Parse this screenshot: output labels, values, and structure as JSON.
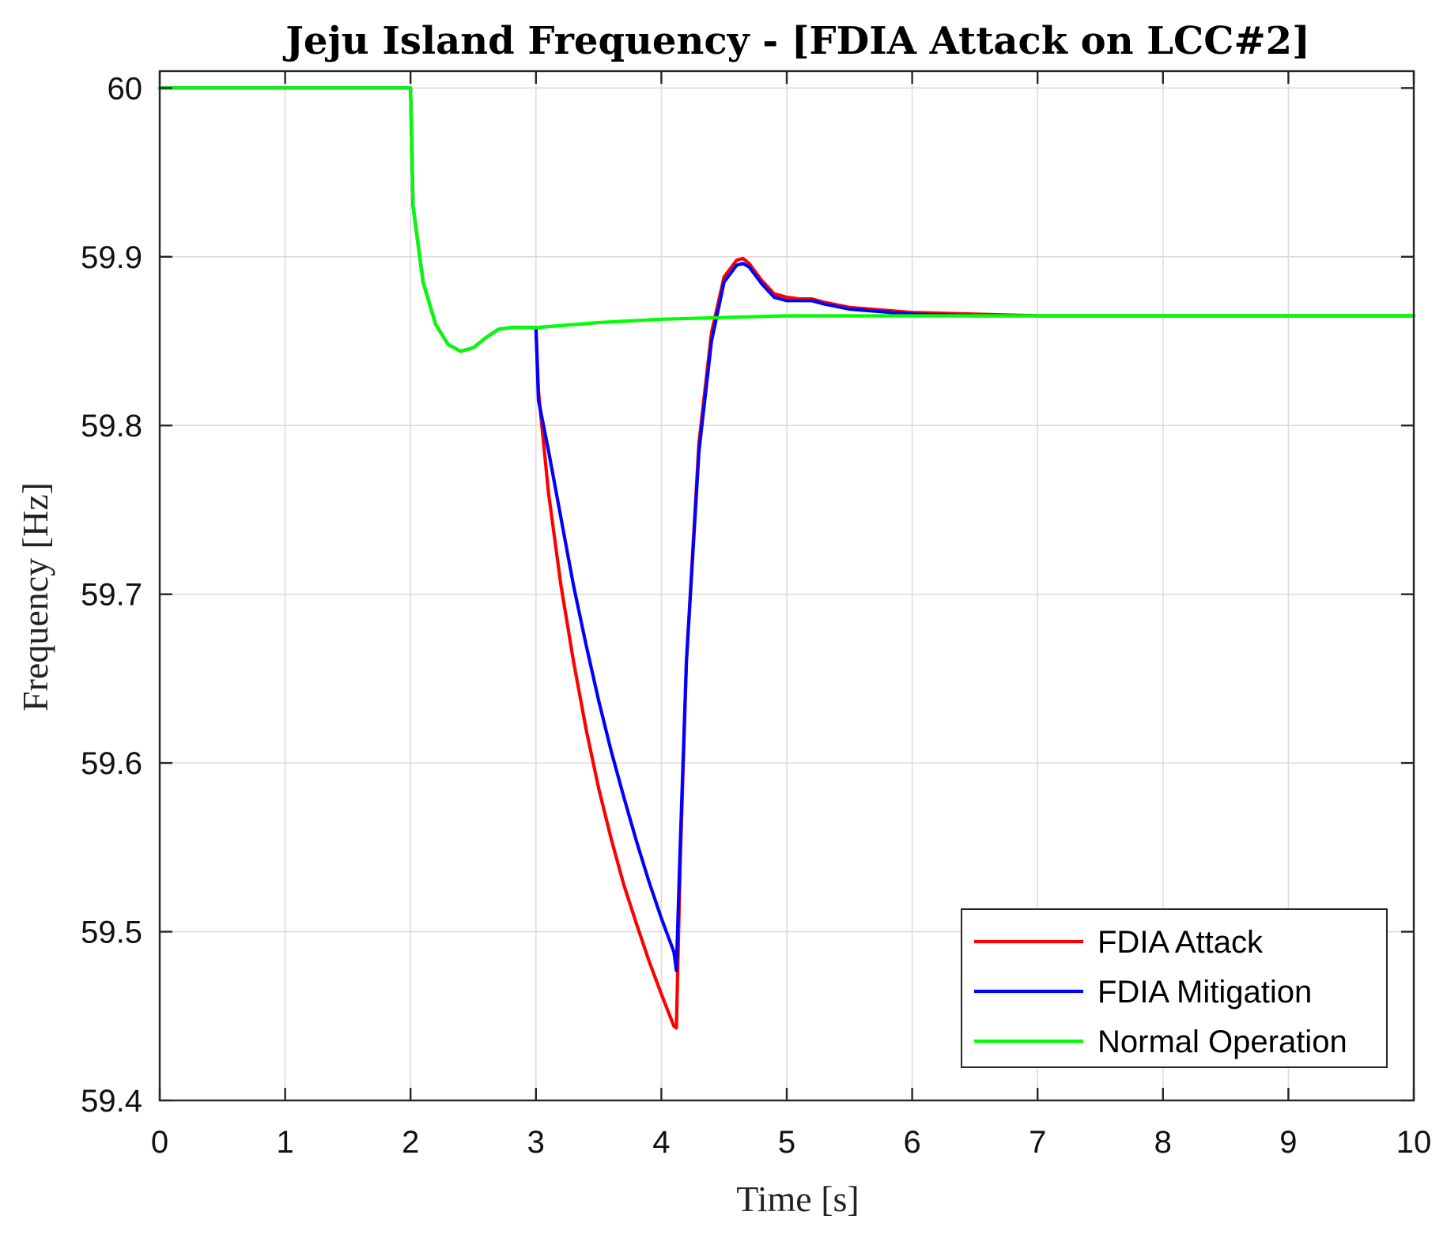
{
  "chart_data": {
    "type": "line",
    "title": "Jeju Island Frequency - [FDIA Attack on LCC#2]",
    "xlabel": "Time [s]",
    "ylabel": "Frequency [Hz]",
    "xlim": [
      0,
      10
    ],
    "ylim": [
      59.4,
      60.01
    ],
    "xticks": [
      "0",
      "1",
      "2",
      "3",
      "4",
      "5",
      "6",
      "7",
      "8",
      "9",
      "10"
    ],
    "yticks": [
      "59.4",
      "59.5",
      "59.6",
      "59.7",
      "59.8",
      "59.9",
      "60"
    ],
    "grid": true,
    "legend_position": "bottom-right",
    "series": [
      {
        "name": "FDIA Attack",
        "color": "#ff0000",
        "x": [
          0,
          2.0,
          2.02,
          2.1,
          2.2,
          2.3,
          2.4,
          2.5,
          2.6,
          2.7,
          2.8,
          2.9,
          3.0,
          3.02,
          3.1,
          3.2,
          3.3,
          3.4,
          3.5,
          3.6,
          3.7,
          3.8,
          3.9,
          4.0,
          4.1,
          4.12,
          4.15,
          4.2,
          4.3,
          4.4,
          4.5,
          4.6,
          4.65,
          4.7,
          4.8,
          4.9,
          5.0,
          5.1,
          5.2,
          5.3,
          5.5,
          6.0,
          6.5,
          7.0,
          8.0,
          9.0,
          10.0
        ],
        "y": [
          60.0,
          60.0,
          59.93,
          59.885,
          59.86,
          59.848,
          59.844,
          59.846,
          59.852,
          59.857,
          59.858,
          59.858,
          59.858,
          59.82,
          59.76,
          59.705,
          59.66,
          59.62,
          59.585,
          59.555,
          59.528,
          59.505,
          59.483,
          59.463,
          59.444,
          59.443,
          59.54,
          59.66,
          59.79,
          59.855,
          59.888,
          59.898,
          59.899,
          59.896,
          59.886,
          59.878,
          59.876,
          59.875,
          59.875,
          59.873,
          59.87,
          59.867,
          59.866,
          59.865,
          59.865,
          59.865,
          59.865
        ]
      },
      {
        "name": "FDIA Mitigation",
        "color": "#0000ff",
        "x": [
          0,
          2.0,
          2.02,
          2.1,
          2.2,
          2.3,
          2.4,
          2.5,
          2.6,
          2.7,
          2.8,
          2.9,
          3.0,
          3.02,
          3.1,
          3.2,
          3.3,
          3.4,
          3.5,
          3.6,
          3.7,
          3.8,
          3.9,
          4.0,
          4.1,
          4.12,
          4.15,
          4.2,
          4.3,
          4.4,
          4.5,
          4.6,
          4.65,
          4.7,
          4.8,
          4.9,
          5.0,
          5.1,
          5.2,
          5.3,
          5.5,
          6.0,
          6.5,
          7.0,
          8.0,
          9.0,
          10.0
        ],
        "y": [
          60.0,
          60.0,
          59.93,
          59.885,
          59.86,
          59.848,
          59.844,
          59.846,
          59.852,
          59.857,
          59.858,
          59.858,
          59.858,
          59.815,
          59.785,
          59.745,
          59.705,
          59.67,
          59.637,
          59.607,
          59.58,
          59.554,
          59.53,
          59.508,
          59.488,
          59.477,
          59.55,
          59.66,
          59.785,
          59.85,
          59.885,
          59.895,
          59.896,
          59.894,
          59.884,
          59.876,
          59.874,
          59.874,
          59.874,
          59.872,
          59.869,
          59.866,
          59.865,
          59.865,
          59.865,
          59.865,
          59.865
        ]
      },
      {
        "name": "Normal Operation",
        "color": "#00ff00",
        "x": [
          0,
          2.0,
          2.02,
          2.1,
          2.2,
          2.3,
          2.4,
          2.5,
          2.6,
          2.7,
          2.8,
          2.9,
          3.0,
          3.5,
          4.0,
          4.5,
          5.0,
          6.0,
          7.0,
          8.0,
          9.0,
          10.0
        ],
        "y": [
          60.0,
          60.0,
          59.93,
          59.885,
          59.86,
          59.848,
          59.844,
          59.846,
          59.852,
          59.857,
          59.858,
          59.858,
          59.858,
          59.861,
          59.863,
          59.864,
          59.865,
          59.865,
          59.865,
          59.865,
          59.865,
          59.865
        ]
      }
    ]
  }
}
